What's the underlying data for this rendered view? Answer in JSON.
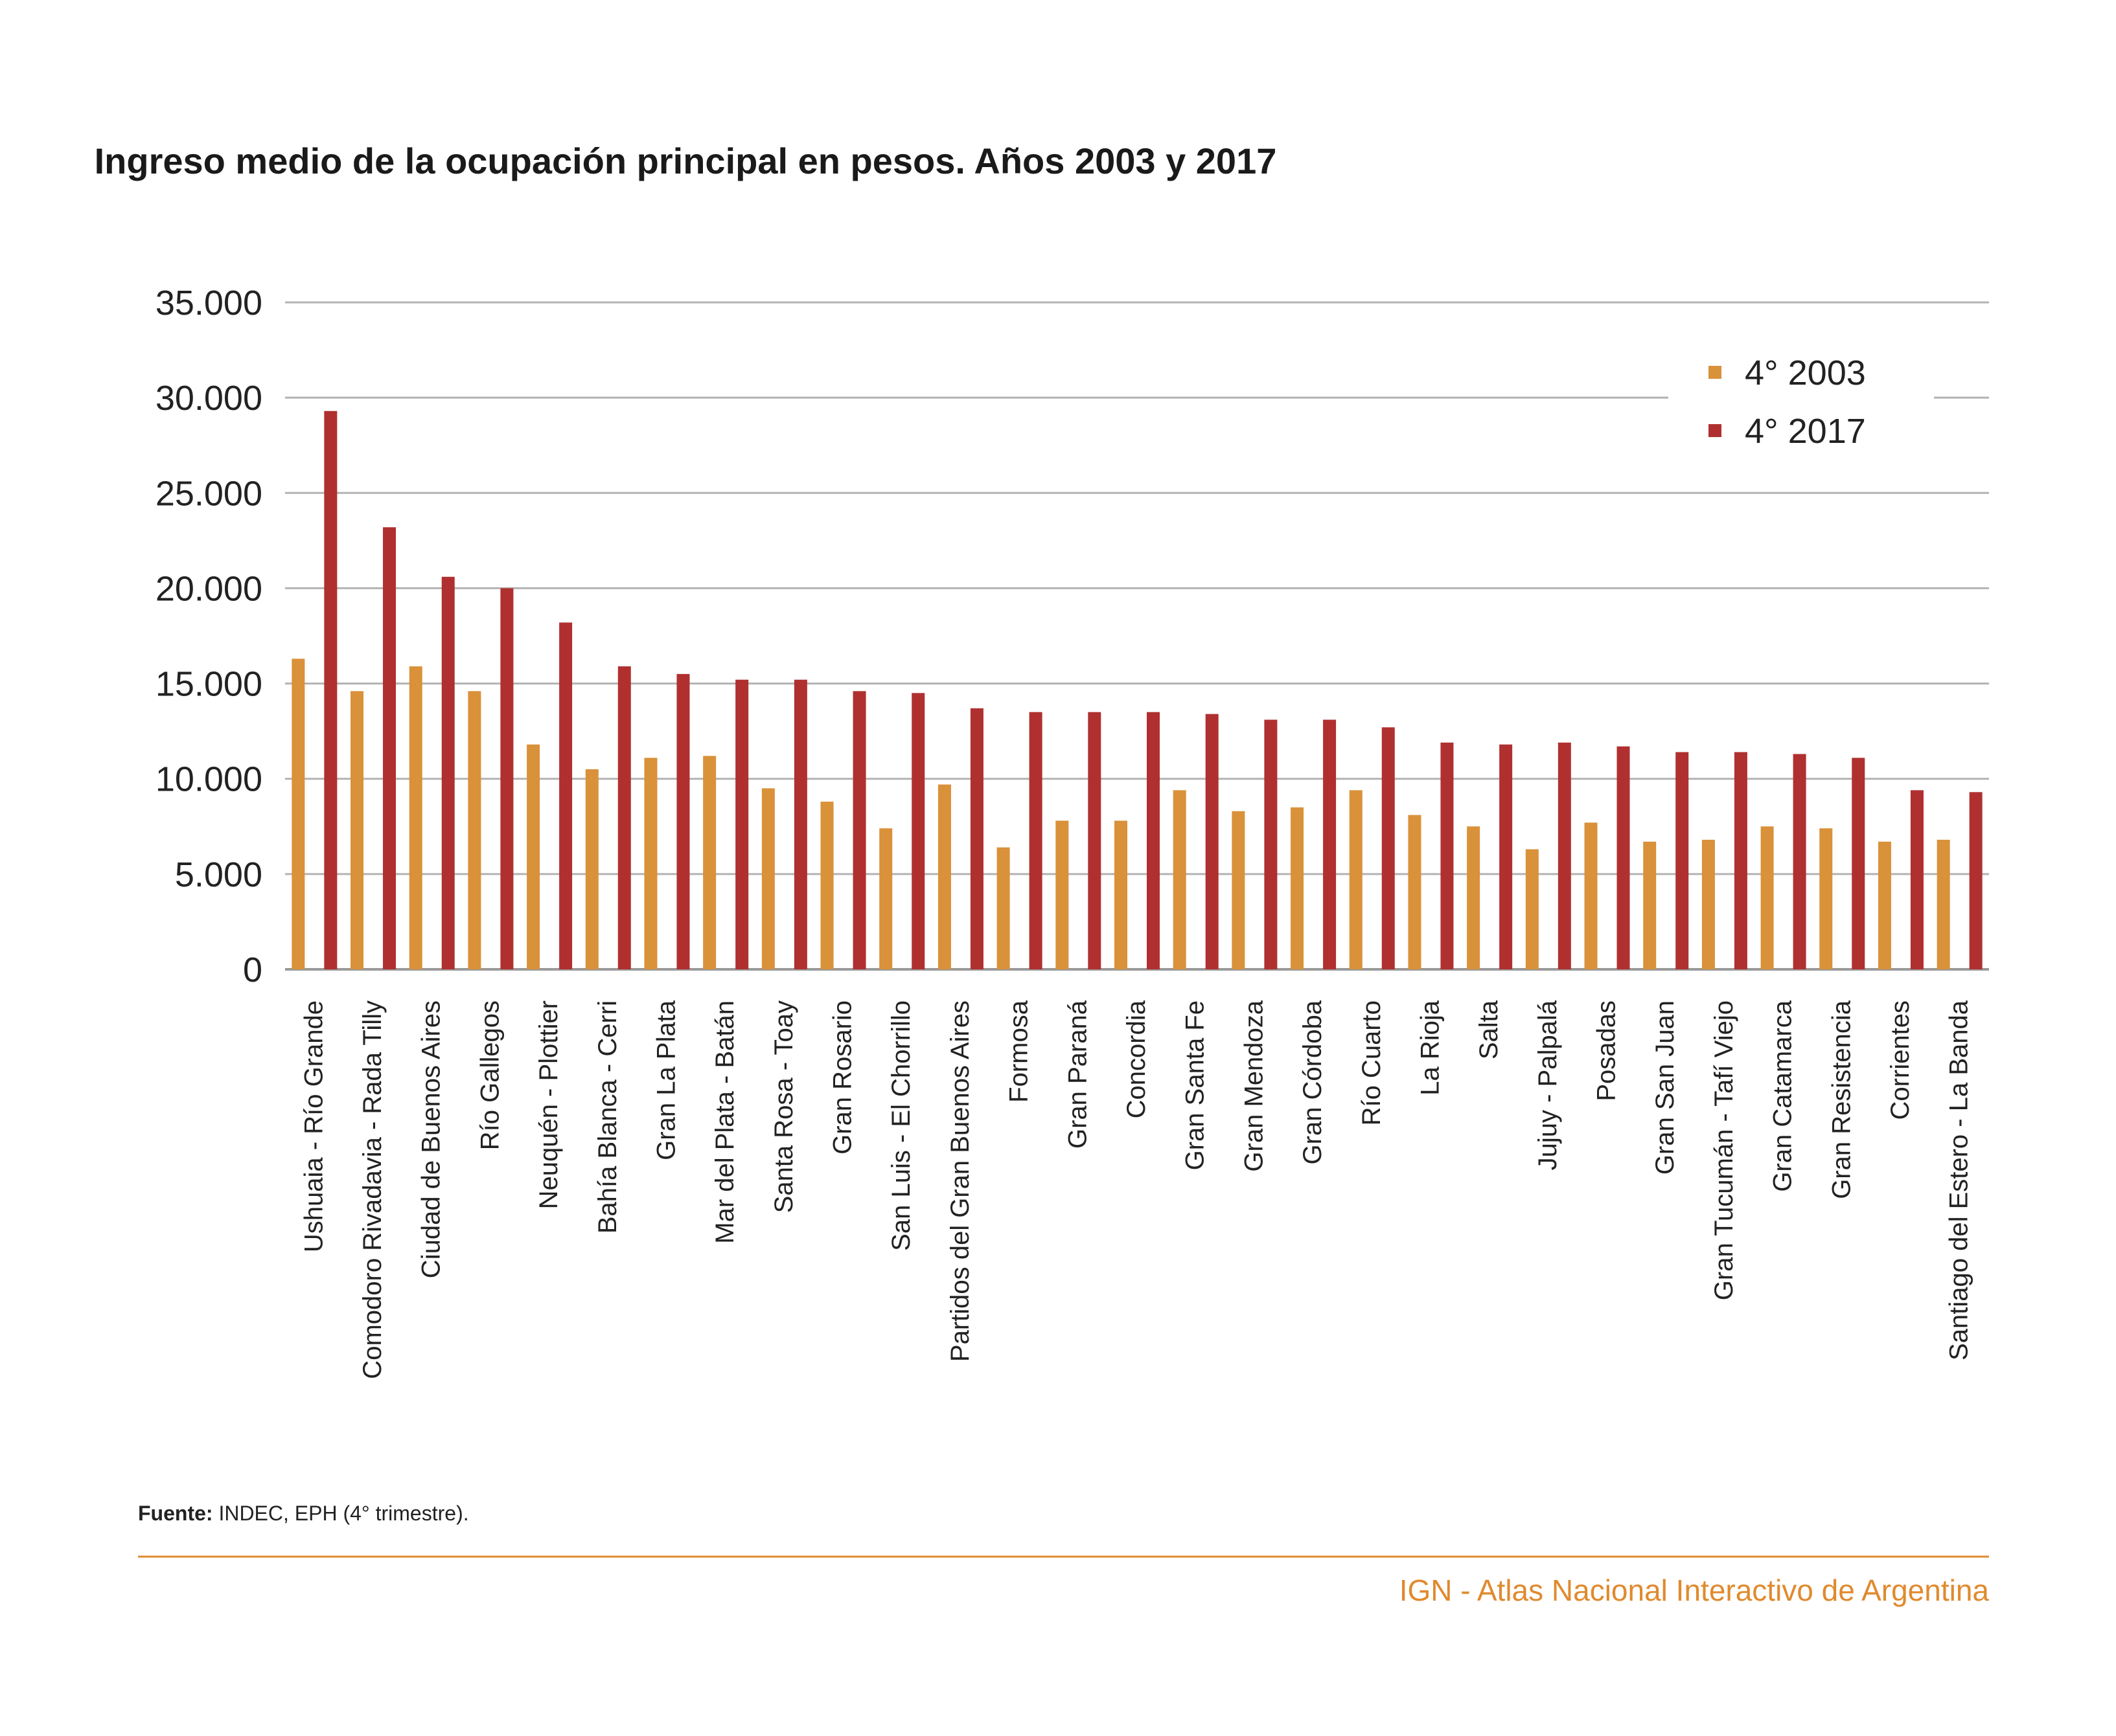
{
  "chart_data": {
    "type": "bar",
    "title": "Ingreso medio de la ocupación principal en pesos. Años 2003 y 2017",
    "xlabel": "",
    "ylabel": "",
    "ylim": [
      0,
      35000
    ],
    "yticks": [
      0,
      5000,
      10000,
      15000,
      20000,
      25000,
      30000,
      35000
    ],
    "ytick_labels": [
      "0",
      "5.000",
      "10.000",
      "15.000",
      "20.000",
      "25.000",
      "30.000",
      "35.000"
    ],
    "grid": true,
    "legend_position": "top-right",
    "categories": [
      "Ushuaia - Río Grande",
      "Comodoro Rivadavia - Rada Tilly",
      "Ciudad de Buenos Aires",
      "Río Gallegos",
      "Neuquén - Plottier",
      "Bahía Blanca - Cerri",
      "Gran La Plata",
      "Mar del Plata - Batán",
      "Santa Rosa - Toay",
      "Gran Rosario",
      "San Luis - El Chorrillo",
      "Partidos del Gran Buenos Aires",
      "Formosa",
      "Gran Paraná",
      "Concordia",
      "Gran Santa Fe",
      "Gran Mendoza",
      "Gran Córdoba",
      "Río Cuarto",
      "La Rioja",
      "Salta",
      "Jujuy - Palpalá",
      "Posadas",
      "Gran San Juan",
      "Gran Tucumán - Tafí Viejo",
      "Gran Catamarca",
      "Gran Resistencia",
      "Corrientes",
      "Santiago del Estero - La Banda"
    ],
    "series": [
      {
        "name": "4° 2003",
        "color": "#d9913a",
        "values": [
          16300,
          14600,
          15900,
          14600,
          11800,
          10500,
          11100,
          11200,
          9500,
          8800,
          7400,
          9700,
          6400,
          7800,
          7800,
          9400,
          8300,
          8500,
          9400,
          8100,
          7500,
          6300,
          7700,
          6700,
          6800,
          7500,
          7400,
          6700,
          6800
        ]
      },
      {
        "name": "4° 2017",
        "color": "#b03030",
        "values": [
          29300,
          23200,
          20600,
          20000,
          18200,
          15900,
          15500,
          15200,
          15200,
          14600,
          14500,
          13700,
          13500,
          13500,
          13500,
          13400,
          13100,
          13100,
          12700,
          11900,
          11800,
          11900,
          11700,
          11400,
          11400,
          11300,
          11100,
          9400,
          9300
        ]
      }
    ]
  },
  "source": {
    "label": "Fuente:",
    "text": " INDEC, EPH (4° trimestre)."
  },
  "footer": {
    "text": "IGN - Atlas Nacional Interactivo de Argentina"
  },
  "colors": {
    "accent": "#e08a2e",
    "grid": "#b3b3b3",
    "axis": "#999999"
  }
}
